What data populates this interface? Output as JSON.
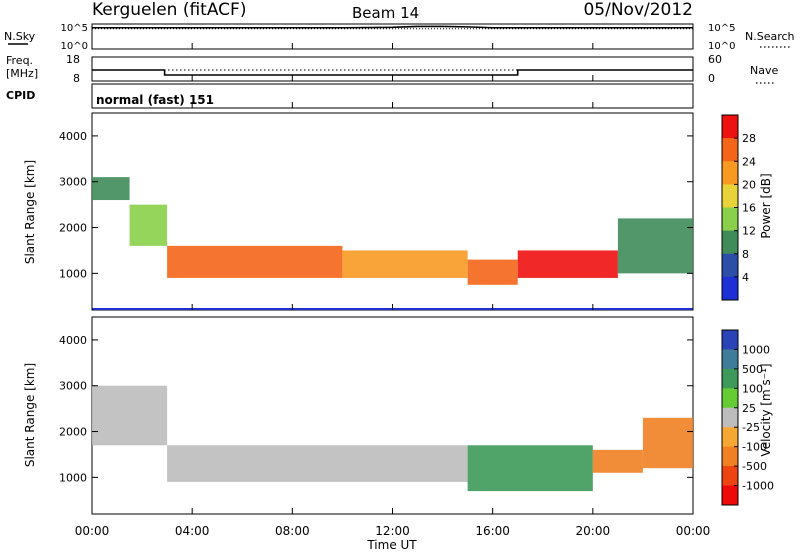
{
  "header": {
    "station": "Kerguelen (fitACF)",
    "beam": "Beam 14",
    "date": "05/Nov/2012"
  },
  "noise_panel": {
    "left_label": "N.Sky",
    "right_label": "N.Search",
    "left_ticks": [
      "10^5",
      "10^0"
    ],
    "right_ticks": [
      "10^5",
      "10^0"
    ]
  },
  "freq_panel": {
    "left_label_line1": "Freq.",
    "left_label_line2": "[MHz]",
    "left_ticks": [
      "18",
      "8"
    ],
    "right_label": "Nave",
    "right_ticks": [
      "60",
      "0"
    ]
  },
  "cpid_panel": {
    "label": "CPID",
    "mode_text": "normal (fast) 151"
  },
  "power_panel": {
    "ylabel": "Slant Range [km]",
    "yticks": [
      "4000",
      "3000",
      "2000",
      "1000"
    ],
    "colorbar_label": "Power [dB]",
    "colorbar_ticks": [
      "28",
      "24",
      "20",
      "16",
      "12",
      "8",
      "4"
    ],
    "colorbar_colors": [
      "#ee1111",
      "#f4651a",
      "#f89a22",
      "#e8d23a",
      "#8ad04a",
      "#3f8c5a",
      "#2c4ea8",
      "#1f2fd6"
    ]
  },
  "velocity_panel": {
    "ylabel": "Slant Range [km]",
    "yticks": [
      "4000",
      "3000",
      "2000",
      "1000"
    ],
    "colorbar_label": "Velocity [m s⁻¹]",
    "colorbar_ticks": [
      "1000",
      "500",
      "100",
      "25",
      "-25",
      "-100",
      "-500",
      "-1000"
    ],
    "colorbar_colors": [
      "#2a44b8",
      "#3f7c9a",
      "#3d9a5a",
      "#66cc33",
      "#bdbdbd",
      "#f4a732",
      "#f08022",
      "#ee4411",
      "#ee0a0a"
    ]
  },
  "xaxis": {
    "label": "Time UT",
    "ticks": [
      "00:00",
      "04:00",
      "08:00",
      "12:00",
      "16:00",
      "20:00",
      "00:00"
    ]
  },
  "chart_data": [
    {
      "type": "line",
      "panel": "noise",
      "x_hours": [
        0,
        2,
        4,
        6,
        8,
        10,
        12,
        13,
        14,
        15,
        16,
        18,
        20,
        22,
        24
      ],
      "n_sky_log10": [
        4.6,
        4.6,
        4.6,
        4.6,
        4.6,
        4.6,
        4.7,
        4.9,
        4.9,
        4.8,
        4.6,
        4.6,
        4.6,
        4.6,
        4.6
      ],
      "n_search_log10": [
        4.6,
        4.6,
        4.6,
        4.6,
        4.6,
        4.6,
        4.6,
        4.6,
        4.6,
        4.6,
        4.6,
        4.6,
        4.6,
        4.6,
        4.6
      ],
      "ylim": [
        0,
        5
      ]
    },
    {
      "type": "line",
      "panel": "frequency",
      "x_hours": [
        0,
        2.9,
        2.9,
        17,
        17,
        24
      ],
      "freq_mhz": [
        13,
        13,
        10.5,
        10.5,
        13,
        13
      ],
      "nave": [
        30,
        30,
        30,
        30,
        30,
        30
      ],
      "ylim": [
        8,
        18
      ]
    },
    {
      "type": "heatmap",
      "panel": "power",
      "xlim": [
        0,
        24
      ],
      "ylim": [
        200,
        4500
      ],
      "unit": "dB",
      "clim": [
        0,
        30
      ],
      "regions": [
        {
          "t0": 0,
          "t1": 1.5,
          "r0": 2600,
          "r1": 3100,
          "value": 8
        },
        {
          "t0": 1.5,
          "t1": 3,
          "r0": 1600,
          "r1": 2500,
          "value": 14
        },
        {
          "t0": 3,
          "t1": 10,
          "r0": 900,
          "r1": 1600,
          "value": 24
        },
        {
          "t0": 10,
          "t1": 15,
          "r0": 900,
          "r1": 1500,
          "value": 22
        },
        {
          "t0": 15,
          "t1": 17,
          "r0": 750,
          "r1": 1300,
          "value": 26
        },
        {
          "t0": 17,
          "t1": 21,
          "r0": 900,
          "r1": 1500,
          "value": 28
        },
        {
          "t0": 21,
          "t1": 24,
          "r0": 1000,
          "r1": 2200,
          "value": 10
        }
      ]
    },
    {
      "type": "heatmap",
      "panel": "velocity",
      "xlim": [
        0,
        24
      ],
      "ylim": [
        200,
        4500
      ],
      "unit": "m/s",
      "regions": [
        {
          "t0": 0,
          "t1": 3,
          "r0": 1700,
          "r1": 3000,
          "value": 0
        },
        {
          "t0": 3,
          "t1": 15,
          "r0": 900,
          "r1": 1700,
          "value": 0
        },
        {
          "t0": 15,
          "t1": 20,
          "r0": 700,
          "r1": 1700,
          "value": 300
        },
        {
          "t0": 20,
          "t1": 22,
          "r0": 1100,
          "r1": 1600,
          "value": -200
        },
        {
          "t0": 22,
          "t1": 24,
          "r0": 1200,
          "r1": 2300,
          "value": -300
        }
      ]
    }
  ]
}
